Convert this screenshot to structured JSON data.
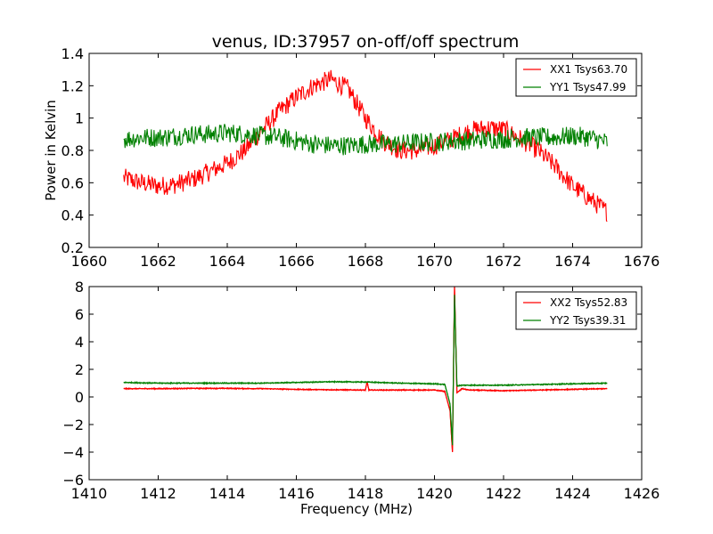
{
  "figure": {
    "title": "venus, ID:37957 on-off/off spectrum"
  },
  "chart_data": [
    {
      "type": "line",
      "title": "venus, ID:37957 on-off/off spectrum",
      "xlabel": "",
      "ylabel": "Power in Kelvin",
      "xlim": [
        1660,
        1676
      ],
      "ylim": [
        0.2,
        1.4
      ],
      "xticks": [
        1660,
        1662,
        1664,
        1666,
        1668,
        1670,
        1672,
        1674,
        1676
      ],
      "yticks": [
        0.2,
        0.4,
        0.6,
        0.8,
        1.0,
        1.2,
        1.4
      ],
      "legend_position": "top-right",
      "grid": false,
      "series": [
        {
          "name": "XX1 Tsys63.70",
          "color": "#ff0000",
          "x": [
            1661.0,
            1661.5,
            1662.0,
            1662.5,
            1663.0,
            1663.5,
            1664.0,
            1664.5,
            1665.0,
            1665.5,
            1666.0,
            1666.5,
            1667.0,
            1667.5,
            1668.0,
            1668.5,
            1669.0,
            1669.5,
            1670.0,
            1670.5,
            1671.0,
            1671.5,
            1672.0,
            1672.5,
            1673.0,
            1673.5,
            1674.0,
            1674.5,
            1675.0
          ],
          "values": [
            0.63,
            0.6,
            0.58,
            0.59,
            0.62,
            0.67,
            0.72,
            0.8,
            0.92,
            1.04,
            1.13,
            1.2,
            1.24,
            1.18,
            1.0,
            0.86,
            0.8,
            0.8,
            0.83,
            0.87,
            0.92,
            0.94,
            0.93,
            0.87,
            0.8,
            0.7,
            0.58,
            0.5,
            0.42
          ]
        },
        {
          "name": "YY1 Tsys47.99",
          "color": "#008000",
          "x": [
            1661.0,
            1661.5,
            1662.0,
            1662.5,
            1663.0,
            1663.5,
            1664.0,
            1664.5,
            1665.0,
            1665.5,
            1666.0,
            1666.5,
            1667.0,
            1667.5,
            1668.0,
            1668.5,
            1669.0,
            1669.5,
            1670.0,
            1670.5,
            1671.0,
            1671.5,
            1672.0,
            1672.5,
            1673.0,
            1673.5,
            1674.0,
            1674.5,
            1675.0
          ],
          "values": [
            0.87,
            0.88,
            0.88,
            0.89,
            0.9,
            0.9,
            0.91,
            0.9,
            0.89,
            0.88,
            0.86,
            0.84,
            0.83,
            0.83,
            0.84,
            0.84,
            0.84,
            0.85,
            0.85,
            0.86,
            0.86,
            0.87,
            0.87,
            0.88,
            0.88,
            0.88,
            0.89,
            0.88,
            0.85
          ]
        }
      ]
    },
    {
      "type": "line",
      "title": "",
      "xlabel": "Frequency (MHz)",
      "ylabel": "",
      "xlim": [
        1410,
        1426
      ],
      "ylim": [
        -6,
        8
      ],
      "xticks": [
        1410,
        1412,
        1414,
        1416,
        1418,
        1420,
        1422,
        1424,
        1426
      ],
      "yticks": [
        -6,
        -4,
        -2,
        0,
        2,
        4,
        6,
        8
      ],
      "legend_position": "top-right",
      "grid": false,
      "series": [
        {
          "name": "XX2 Tsys52.83",
          "color": "#ff0000",
          "x": [
            1411.0,
            1412.0,
            1413.0,
            1414.0,
            1415.0,
            1416.0,
            1417.0,
            1418.0,
            1418.05,
            1418.1,
            1419.0,
            1420.0,
            1420.3,
            1420.45,
            1420.52,
            1420.58,
            1420.65,
            1420.8,
            1421.0,
            1422.0,
            1423.0,
            1424.0,
            1425.0
          ],
          "values": [
            0.6,
            0.6,
            0.62,
            0.62,
            0.6,
            0.55,
            0.52,
            0.5,
            1.1,
            0.5,
            0.5,
            0.5,
            0.4,
            -1.0,
            -4.0,
            8.0,
            0.3,
            0.6,
            0.5,
            0.45,
            0.5,
            0.55,
            0.6
          ]
        },
        {
          "name": "YY2 Tsys39.31",
          "color": "#008000",
          "x": [
            1411.0,
            1412.0,
            1413.0,
            1414.0,
            1415.0,
            1416.0,
            1417.0,
            1418.0,
            1419.0,
            1420.0,
            1420.3,
            1420.45,
            1420.52,
            1420.58,
            1420.65,
            1420.8,
            1421.0,
            1422.0,
            1423.0,
            1424.0,
            1425.0
          ],
          "values": [
            1.05,
            1.0,
            1.0,
            1.0,
            1.0,
            1.05,
            1.1,
            1.08,
            1.0,
            0.95,
            0.9,
            -0.5,
            -3.5,
            7.4,
            0.8,
            0.85,
            0.85,
            0.85,
            0.9,
            0.95,
            1.0
          ]
        }
      ]
    }
  ]
}
